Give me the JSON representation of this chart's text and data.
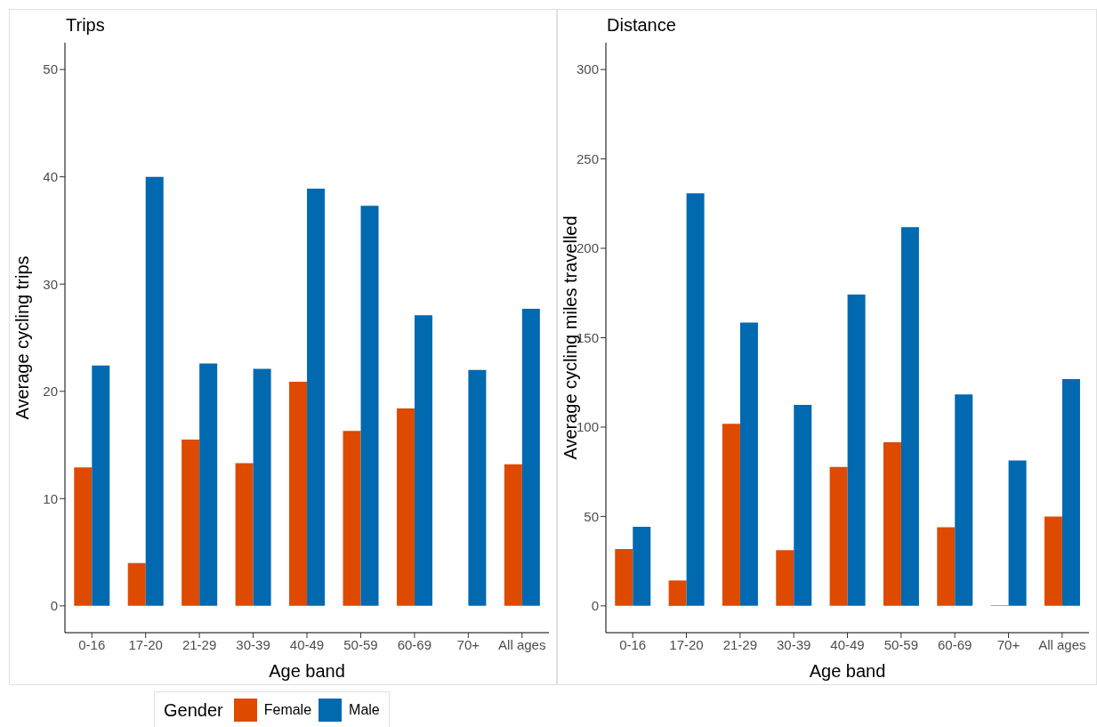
{
  "chart_data": [
    {
      "type": "bar",
      "title": "Trips",
      "xlabel": "Age band",
      "ylabel": "Average cycling trips",
      "legend_title": "Gender",
      "legend": "bottom",
      "grid": false,
      "categories": [
        "0-16",
        "17-20",
        "21-29",
        "30-39",
        "40-49",
        "50-59",
        "60-69",
        "70+",
        "All ages"
      ],
      "series": [
        {
          "name": "Female",
          "color": "#dd4a00",
          "values": [
            12.9,
            4.0,
            15.5,
            13.3,
            20.9,
            16.3,
            18.4,
            null,
            13.2
          ]
        },
        {
          "name": "Male",
          "color": "#0069b0",
          "values": [
            22.4,
            40.0,
            22.6,
            22.1,
            38.9,
            37.3,
            27.1,
            22.0,
            27.7
          ]
        }
      ],
      "ylim": [
        -2.5,
        52.5
      ],
      "yticks": [
        0,
        10,
        20,
        30,
        40,
        50
      ]
    },
    {
      "type": "bar",
      "title": "Distance",
      "xlabel": "Age band",
      "ylabel": "Average cycling miles travelled",
      "grid": false,
      "categories": [
        "0-16",
        "17-20",
        "21-29",
        "30-39",
        "40-49",
        "50-59",
        "60-69",
        "70+",
        "All ages"
      ],
      "series": [
        {
          "color": "#dd4a00",
          "values": [
            31.8,
            14.2,
            101.8,
            31.2,
            77.7,
            91.5,
            44.0,
            0.3,
            49.9
          ]
        },
        {
          "color": "#0069b0",
          "values": [
            44.2,
            230.8,
            158.4,
            112.4,
            174.2,
            211.8,
            118.3,
            81.3,
            126.8
          ]
        }
      ],
      "ylim": [
        -15,
        315
      ],
      "yticks": [
        0,
        50,
        100,
        150,
        200,
        250,
        300
      ]
    }
  ]
}
